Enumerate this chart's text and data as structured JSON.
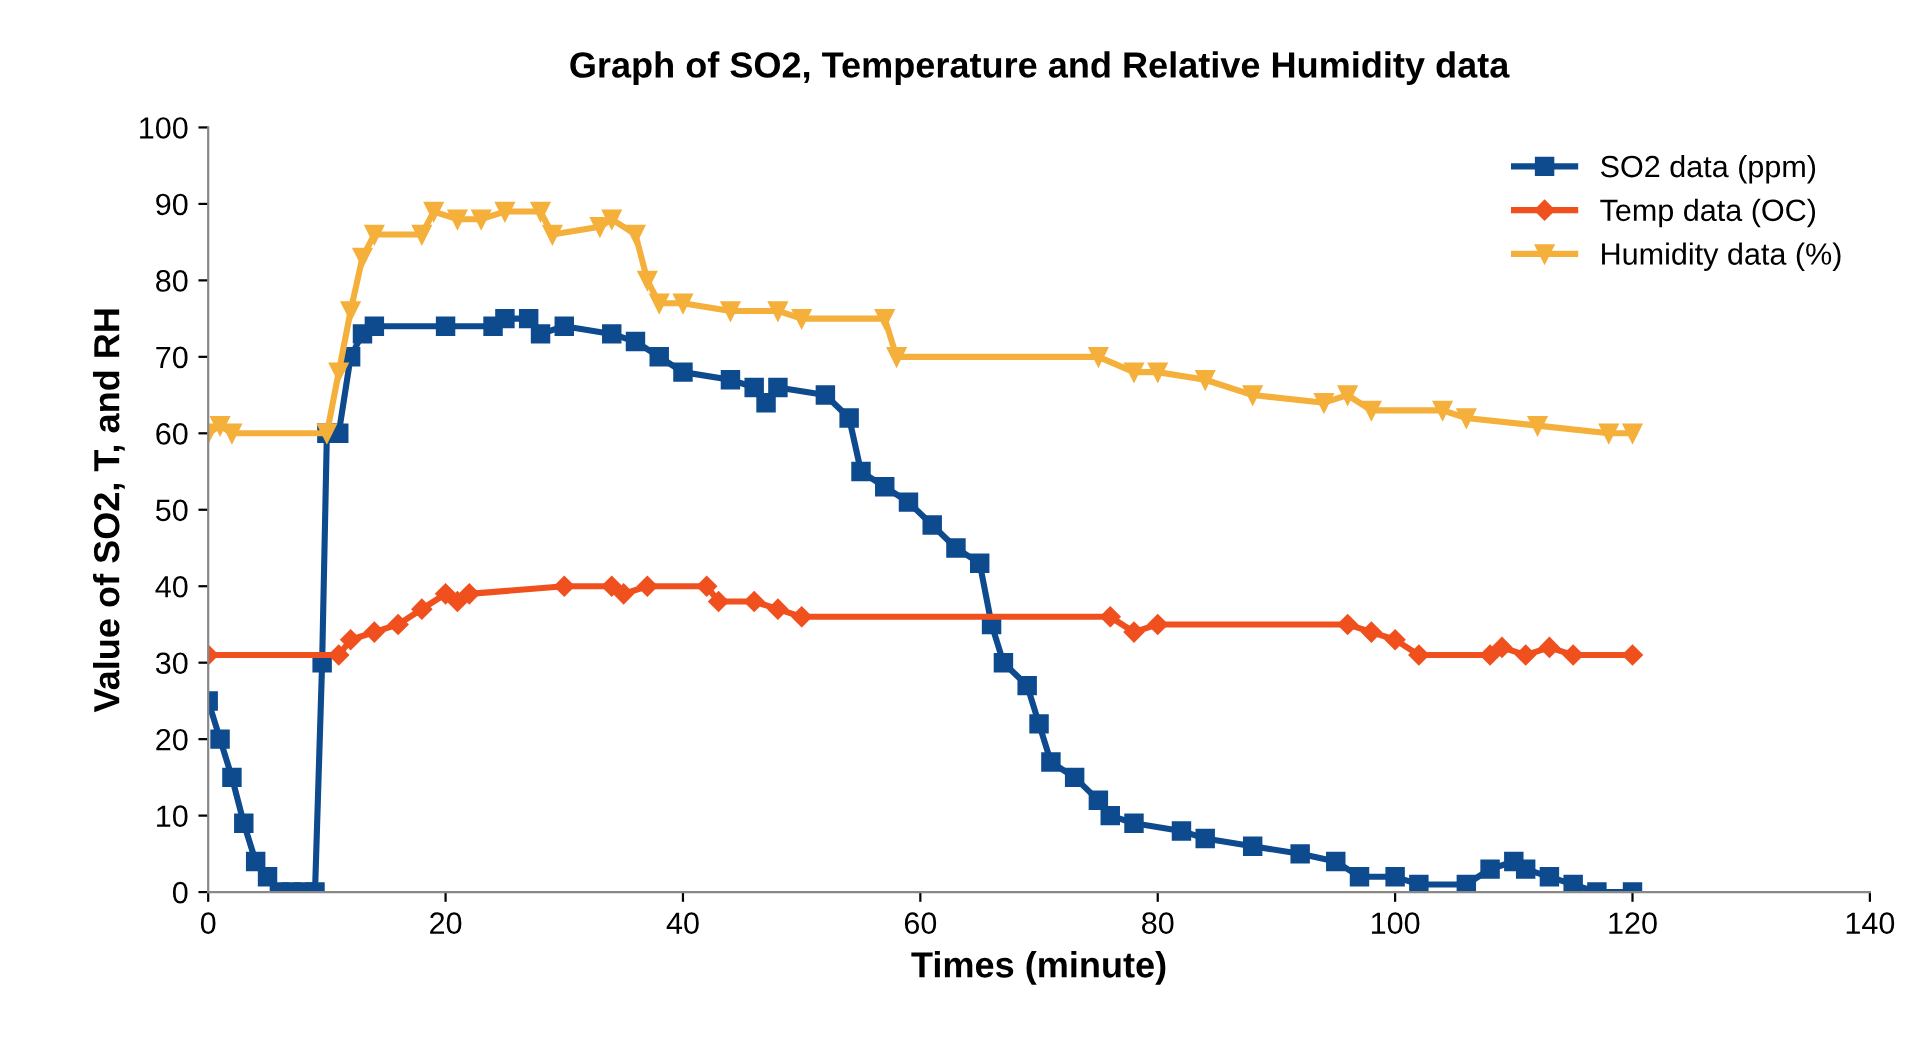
{
  "chart_data": {
    "type": "line",
    "title": "Graph of SO2, Temperature and Relative Humidity data",
    "xlabel": "Times (minute)",
    "ylabel": "Value of SO2, T, and RH",
    "xlim": [
      0,
      140
    ],
    "xticks": [
      0,
      20,
      40,
      60,
      80,
      100,
      120,
      140
    ],
    "ylim": [
      0,
      100
    ],
    "yticks": [
      0,
      10,
      20,
      30,
      40,
      50,
      60,
      70,
      80,
      90,
      100
    ],
    "grid": false,
    "legend": "top right",
    "series": [
      {
        "name": "SO2 data (ppm)",
        "color": "#0e4a8e",
        "marker": "square",
        "x": [
          0,
          1,
          2,
          3,
          4,
          5,
          6,
          7,
          8,
          9,
          9.6,
          10,
          11,
          12,
          13,
          14,
          20,
          24,
          25,
          27,
          28,
          30,
          34,
          36,
          38,
          40,
          44,
          46,
          47,
          48,
          52,
          54,
          55,
          57,
          59,
          61,
          63,
          65,
          66,
          67,
          69,
          70,
          71,
          73,
          75,
          76,
          78,
          82,
          84,
          88,
          92,
          95,
          97,
          100,
          102,
          106,
          108,
          110,
          111,
          113,
          115,
          117,
          120
        ],
        "values": [
          25,
          20,
          15,
          9,
          4,
          2,
          0,
          0,
          0,
          0,
          30,
          60,
          60,
          70,
          73,
          74,
          74,
          74,
          75,
          75,
          73,
          74,
          73,
          72,
          70,
          68,
          67,
          66,
          64,
          66,
          65,
          62,
          55,
          53,
          51,
          48,
          45,
          43,
          35,
          30,
          27,
          22,
          17,
          15,
          12,
          10,
          9,
          8,
          7,
          6,
          5,
          4,
          2,
          2,
          1,
          1,
          3,
          4,
          3,
          2,
          1,
          0,
          0
        ]
      },
      {
        "name": "Temp data (OC)",
        "color": "#f0501e",
        "marker": "diamond",
        "x": [
          0,
          11,
          12,
          14,
          16,
          18,
          20,
          21,
          22,
          30,
          34,
          35,
          37,
          42,
          43,
          46,
          48,
          50,
          76,
          78,
          80,
          96,
          98,
          100,
          102,
          108,
          109,
          111,
          113,
          115,
          120
        ],
        "values": [
          31,
          31,
          33,
          34,
          35,
          37,
          39,
          38,
          39,
          40,
          40,
          39,
          40,
          40,
          38,
          38,
          37,
          36,
          36,
          34,
          35,
          35,
          34,
          33,
          31,
          31,
          32,
          31,
          32,
          31,
          31
        ]
      },
      {
        "name": "Humidity data (%)",
        "color": "#f4b03a",
        "marker": "triangle",
        "x": [
          0,
          1,
          2,
          10,
          11,
          12,
          13,
          14,
          18,
          19,
          21,
          23,
          25,
          28,
          29,
          33,
          34,
          36,
          37,
          38,
          40,
          44,
          48,
          50,
          57,
          58,
          75,
          78,
          80,
          84,
          88,
          94,
          96,
          98,
          104,
          106,
          112,
          118,
          120
        ],
        "values": [
          60,
          61,
          60,
          60,
          68,
          76,
          83,
          86,
          86,
          89,
          88,
          88,
          89,
          89,
          86,
          87,
          88,
          86,
          80,
          77,
          77,
          76,
          76,
          75,
          75,
          70,
          70,
          68,
          68,
          67,
          65,
          64,
          65,
          63,
          63,
          62,
          61,
          60,
          60
        ]
      }
    ]
  }
}
